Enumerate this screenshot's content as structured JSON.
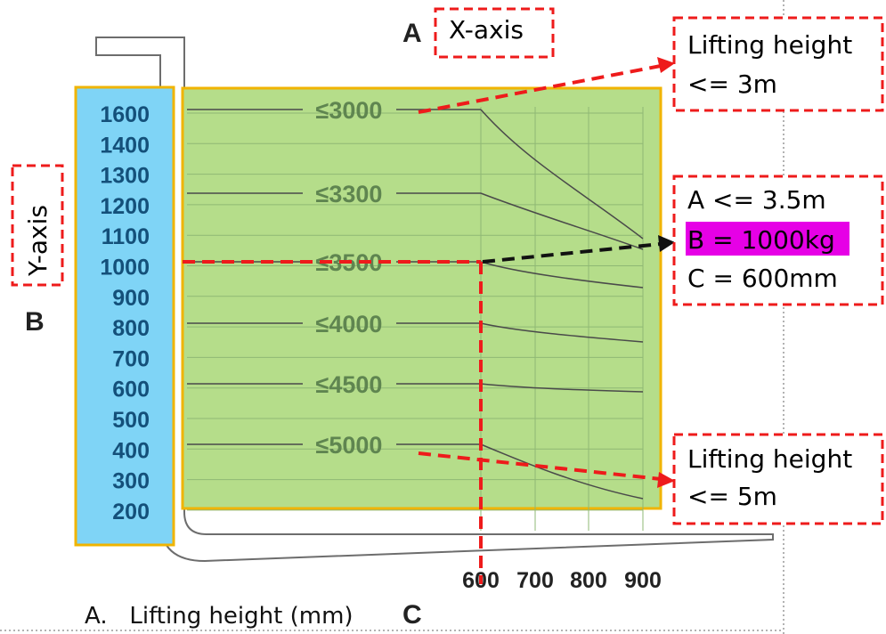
{
  "markers": {
    "a": "A",
    "b": "B",
    "c": "C"
  },
  "axis_tags": {
    "x": "X-axis",
    "y": "Y-axis"
  },
  "bottom_caption": "A.   Lifting height (mm)",
  "y_ticks": [
    "1600",
    "1400",
    "1300",
    "1200",
    "1100",
    "1000",
    "900",
    "800",
    "700",
    "600",
    "500",
    "400",
    "300",
    "200"
  ],
  "x_ticks": [
    "600",
    "700",
    "800",
    "900"
  ],
  "height_labels": [
    "≤3000",
    "≤3300",
    "≤3500",
    "≤4000",
    "≤4500",
    "≤5000"
  ],
  "callouts": {
    "top": [
      "Lifting height",
      "<= 3m"
    ],
    "middle": {
      "line1": "A <= 3.5m",
      "line2": "B = 1000kg",
      "line3": "C = 600mm"
    },
    "bottom": [
      "Lifting height",
      "<= 5m"
    ]
  },
  "colors": {
    "y_scale_fill": "#7fd4f6",
    "chart_fill": "#b5dd8a",
    "frame_border": "#f0b400",
    "tick_text": "#14507a",
    "chart_label_text": "#5f8550",
    "dashed": "#ee1b1b",
    "highlight": "#e600e6",
    "curve": "#4a4a4a"
  }
}
